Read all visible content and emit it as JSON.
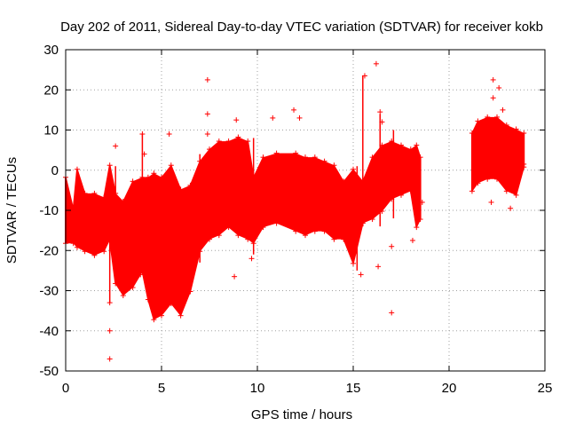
{
  "chart_data": {
    "type": "scatter",
    "title": "Day 202 of 2011, Sidereal Day-to-day VTEC variation (SDTVAR) for receiver kokb",
    "xlabel": "GPS time / hours",
    "ylabel": "SDTVAR / TECUs",
    "xlim": [
      0,
      25
    ],
    "ylim": [
      -50,
      30
    ],
    "xticks": [
      0,
      5,
      10,
      15,
      20,
      25
    ],
    "yticks": [
      -50,
      -40,
      -30,
      -20,
      -10,
      0,
      10,
      20,
      30
    ],
    "grid": true,
    "marker": "+",
    "series_color": "#ff0000",
    "envelope": [
      {
        "x": 0.0,
        "lo": -18,
        "hi": -2
      },
      {
        "x": 0.4,
        "lo": -18,
        "hi": -10
      },
      {
        "x": 0.6,
        "lo": -19,
        "hi": 0
      },
      {
        "x": 1.0,
        "lo": -20,
        "hi": -6
      },
      {
        "x": 1.5,
        "lo": -21,
        "hi": -6
      },
      {
        "x": 2.0,
        "lo": -20,
        "hi": -7
      },
      {
        "x": 2.3,
        "lo": -17,
        "hi": 1
      },
      {
        "x": 2.6,
        "lo": -28,
        "hi": -6
      },
      {
        "x": 3.0,
        "lo": -31,
        "hi": -8
      },
      {
        "x": 3.5,
        "lo": -29,
        "hi": -3
      },
      {
        "x": 4.0,
        "lo": -25,
        "hi": -2
      },
      {
        "x": 4.3,
        "lo": -32,
        "hi": -2
      },
      {
        "x": 4.6,
        "lo": -37,
        "hi": -1
      },
      {
        "x": 5.0,
        "lo": -36,
        "hi": -2
      },
      {
        "x": 5.5,
        "lo": -33,
        "hi": 1
      },
      {
        "x": 6.0,
        "lo": -36,
        "hi": -5
      },
      {
        "x": 6.5,
        "lo": -30,
        "hi": -4
      },
      {
        "x": 7.0,
        "lo": -20,
        "hi": 2
      },
      {
        "x": 7.5,
        "lo": -17,
        "hi": 5
      },
      {
        "x": 8.0,
        "lo": -16,
        "hi": 7
      },
      {
        "x": 8.5,
        "lo": -14,
        "hi": 7
      },
      {
        "x": 9.0,
        "lo": -16,
        "hi": 8
      },
      {
        "x": 9.5,
        "lo": -17,
        "hi": 7
      },
      {
        "x": 9.8,
        "lo": -18,
        "hi": -2
      },
      {
        "x": 10.3,
        "lo": -14,
        "hi": 3
      },
      {
        "x": 11.0,
        "lo": -13,
        "hi": 4
      },
      {
        "x": 12.0,
        "lo": -15,
        "hi": 4
      },
      {
        "x": 12.5,
        "lo": -16,
        "hi": 3
      },
      {
        "x": 13.0,
        "lo": -15,
        "hi": 3
      },
      {
        "x": 13.5,
        "lo": -15,
        "hi": 2
      },
      {
        "x": 14.0,
        "lo": -17,
        "hi": 1
      },
      {
        "x": 14.5,
        "lo": -17,
        "hi": -3
      },
      {
        "x": 15.0,
        "lo": -23,
        "hi": 0
      },
      {
        "x": 15.5,
        "lo": -13,
        "hi": -3
      },
      {
        "x": 16.0,
        "lo": -12,
        "hi": 3
      },
      {
        "x": 16.5,
        "lo": -10,
        "hi": 6
      },
      {
        "x": 17.0,
        "lo": -7,
        "hi": 7
      },
      {
        "x": 17.5,
        "lo": -6,
        "hi": 6
      },
      {
        "x": 18.0,
        "lo": -5,
        "hi": 5
      },
      {
        "x": 18.3,
        "lo": -14,
        "hi": 6
      },
      {
        "x": 18.5,
        "lo": -12,
        "hi": 3
      }
    ],
    "envelope2": [
      {
        "x": 21.2,
        "lo": -5,
        "hi": 9
      },
      {
        "x": 21.5,
        "lo": -3,
        "hi": 12
      },
      {
        "x": 22.0,
        "lo": -2,
        "hi": 13
      },
      {
        "x": 22.5,
        "lo": -2,
        "hi": 13
      },
      {
        "x": 23.0,
        "lo": -5,
        "hi": 11
      },
      {
        "x": 23.5,
        "lo": -6,
        "hi": 10
      },
      {
        "x": 23.9,
        "lo": 1,
        "hi": 9
      }
    ],
    "outliers": [
      {
        "x": 2.3,
        "y": -47
      },
      {
        "x": 2.3,
        "y": -40
      },
      {
        "x": 2.3,
        "y": -33
      },
      {
        "x": 2.6,
        "y": 6
      },
      {
        "x": 4.0,
        "y": 9
      },
      {
        "x": 4.1,
        "y": 4
      },
      {
        "x": 3.9,
        "y": -26
      },
      {
        "x": 5.4,
        "y": 9
      },
      {
        "x": 7.4,
        "y": 22.5
      },
      {
        "x": 7.4,
        "y": 14
      },
      {
        "x": 7.4,
        "y": 9
      },
      {
        "x": 8.9,
        "y": 12.5
      },
      {
        "x": 8.8,
        "y": -26.5
      },
      {
        "x": 9.7,
        "y": -22
      },
      {
        "x": 10.8,
        "y": 13
      },
      {
        "x": 11.9,
        "y": 15
      },
      {
        "x": 12.2,
        "y": 13
      },
      {
        "x": 15.4,
        "y": -26
      },
      {
        "x": 15.6,
        "y": 23.5
      },
      {
        "x": 16.2,
        "y": 26.5
      },
      {
        "x": 16.3,
        "y": -24
      },
      {
        "x": 16.4,
        "y": 14.5
      },
      {
        "x": 16.5,
        "y": 12
      },
      {
        "x": 17.0,
        "y": -35.5
      },
      {
        "x": 17.0,
        "y": -19
      },
      {
        "x": 18.1,
        "y": -17.5
      },
      {
        "x": 18.6,
        "y": -8
      },
      {
        "x": 22.3,
        "y": 22.5
      },
      {
        "x": 22.6,
        "y": 20.5
      },
      {
        "x": 22.3,
        "y": 18
      },
      {
        "x": 22.8,
        "y": 15
      },
      {
        "x": 23.2,
        "y": -9.5
      },
      {
        "x": 22.2,
        "y": -8
      },
      {
        "x": 23.9,
        "y": 1.5
      }
    ],
    "spikes": [
      {
        "x": 0.6,
        "lo": -19,
        "hi": 0
      },
      {
        "x": 2.3,
        "lo": -33,
        "hi": 1
      },
      {
        "x": 2.6,
        "lo": -21,
        "hi": 1
      },
      {
        "x": 4.0,
        "lo": -18,
        "hi": 9
      },
      {
        "x": 7.0,
        "lo": -23,
        "hi": 4
      },
      {
        "x": 9.8,
        "lo": -21,
        "hi": 8
      },
      {
        "x": 15.2,
        "lo": -25,
        "hi": 1
      },
      {
        "x": 15.5,
        "lo": -14,
        "hi": 23.5
      },
      {
        "x": 16.4,
        "lo": -14,
        "hi": 14
      },
      {
        "x": 17.1,
        "lo": -12,
        "hi": 10
      },
      {
        "x": 18.3,
        "lo": -14,
        "hi": 6
      }
    ]
  }
}
